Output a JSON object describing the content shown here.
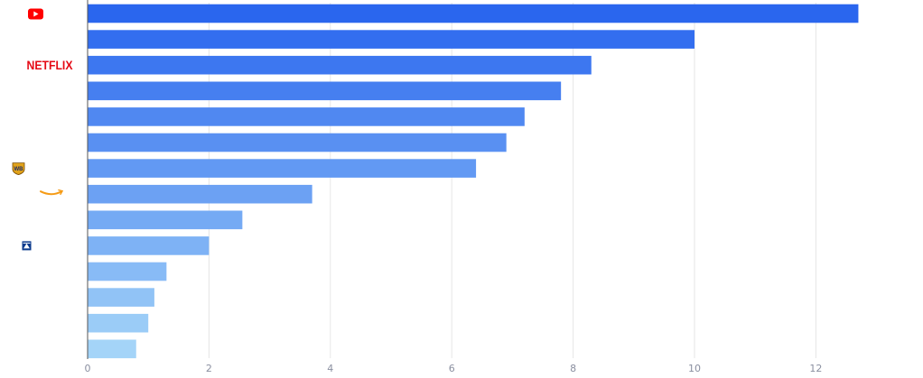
{
  "chart_data": {
    "type": "bar",
    "orientation": "horizontal",
    "categories": [
      {
        "logo": "youtube-logo",
        "text": ""
      },
      {
        "logo": "",
        "text": ""
      },
      {
        "logo": "netflix-logo",
        "text": "NETFLIX"
      },
      {
        "logo": "",
        "text": ""
      },
      {
        "logo": "",
        "text": ""
      },
      {
        "logo": "",
        "text": ""
      },
      {
        "logo": "warner-bros-logo",
        "text": ""
      },
      {
        "logo": "amazon-logo",
        "text": ""
      },
      {
        "logo": "",
        "text": ""
      },
      {
        "logo": "paramount-logo",
        "text": ""
      },
      {
        "logo": "",
        "text": ""
      },
      {
        "logo": "",
        "text": ""
      },
      {
        "logo": "",
        "text": ""
      },
      {
        "logo": "",
        "text": ""
      }
    ],
    "values": [
      12.7,
      10.0,
      8.3,
      7.8,
      7.2,
      6.9,
      6.4,
      3.7,
      2.55,
      2.0,
      1.3,
      1.1,
      1.0,
      0.8
    ],
    "xlim": [
      0,
      13
    ],
    "xticks": [
      0,
      2,
      4,
      6,
      8,
      10,
      12
    ],
    "xtick_labels": [
      "0",
      "2",
      "4",
      "6",
      "8",
      "10",
      "12"
    ],
    "grid": true,
    "colors": {
      "bar_start": "#2a66ee",
      "bar_end": "#a4d4f8",
      "grid": "#e6e6e6",
      "axis": "#555555",
      "tick_text": "#8a8fa0"
    }
  }
}
